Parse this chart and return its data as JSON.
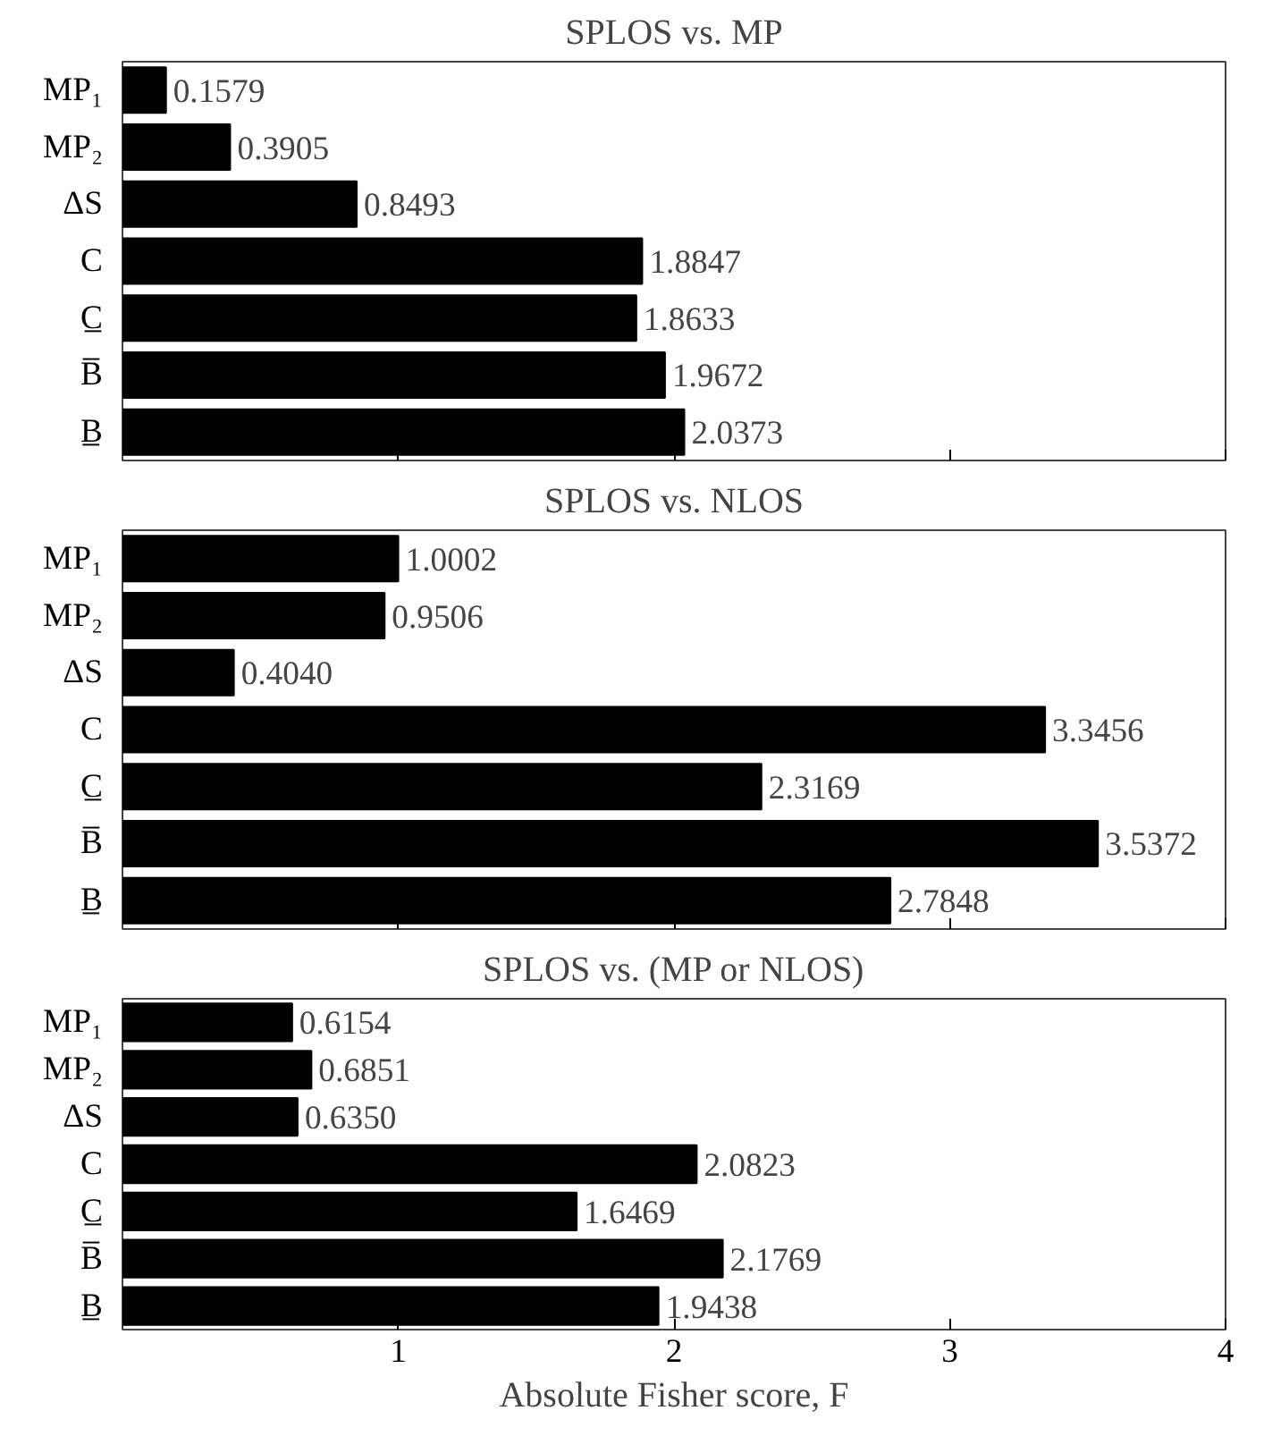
{
  "chart_data": [
    {
      "type": "bar",
      "orientation": "horizontal",
      "title": "SPLOS vs. MP",
      "categories": [
        "MP₁",
        "MP₂",
        "ΔS",
        "C",
        "C̲",
        "B̅",
        "B̲"
      ],
      "values": [
        0.1579,
        0.3905,
        0.8493,
        1.8847,
        1.8633,
        1.9672,
        2.0373
      ],
      "value_labels": [
        "0.1579",
        "0.3905",
        "0.8493",
        "1.8847",
        "1.8633",
        "1.9672",
        "2.0373"
      ],
      "color": "#000000",
      "xlim": [
        0,
        4
      ],
      "xticks": [
        1,
        2,
        3,
        4
      ],
      "tick_labels": "y",
      "grid": false
    },
    {
      "type": "bar",
      "orientation": "horizontal",
      "title": "SPLOS vs. NLOS",
      "categories": [
        "MP₁",
        "MP₂",
        "ΔS",
        "C",
        "C̲",
        "B̅",
        "B̲"
      ],
      "values": [
        1.0002,
        0.9506,
        0.404,
        3.3456,
        2.3169,
        3.5372,
        2.7848
      ],
      "value_labels": [
        "1.0002",
        "0.9506",
        "0.4040",
        "3.3456",
        "2.3169",
        "3.5372",
        "2.7848"
      ],
      "color": "#000000",
      "xlim": [
        0,
        4
      ],
      "xticks": [
        1,
        2,
        3,
        4
      ],
      "tick_labels": "y",
      "grid": false
    },
    {
      "type": "bar",
      "orientation": "horizontal",
      "title": "SPLOS vs. (MP or NLOS)",
      "xlabel": "Absolute Fisher score, F",
      "categories": [
        "MP₁",
        "MP₂",
        "ΔS",
        "C",
        "C̲",
        "B̅",
        "B̲"
      ],
      "values": [
        0.6154,
        0.6851,
        0.635,
        2.0823,
        1.6469,
        2.1769,
        1.9438
      ],
      "value_labels": [
        "0.6154",
        "0.6851",
        "0.6350",
        "2.0823",
        "1.6469",
        "2.1769",
        "1.9438"
      ],
      "color": "#000000",
      "xlim": [
        0,
        4
      ],
      "xticks": [
        1,
        2,
        3,
        4
      ],
      "grid": false
    }
  ]
}
